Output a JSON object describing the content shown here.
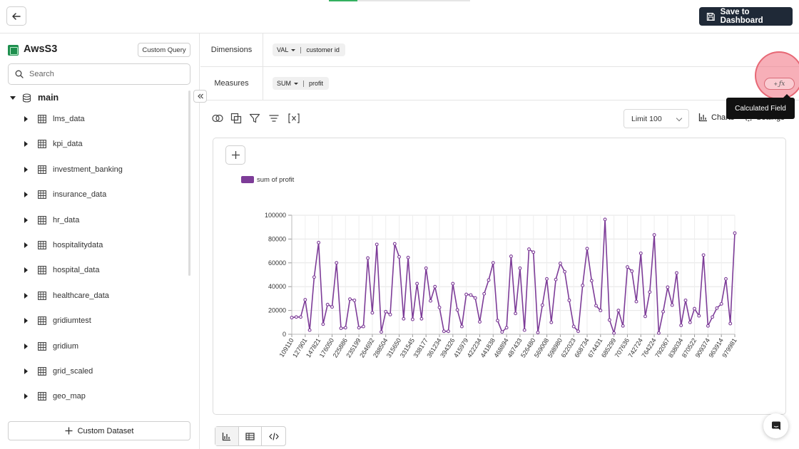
{
  "header": {
    "back_icon": "arrow-left-icon",
    "save_label": "Save to Dashboard",
    "save_icon": "floppy-disk-icon"
  },
  "sidebar": {
    "dataset_icon": "aws-s3-icon",
    "dataset_name": "AwsS3",
    "custom_query_label": "Custom Query",
    "search_placeholder": "Search",
    "schema": {
      "icon": "database-icon",
      "label": "main"
    },
    "tables": [
      {
        "label": "lms_data"
      },
      {
        "label": "kpi_data"
      },
      {
        "label": "investment_banking"
      },
      {
        "label": "insurance_data"
      },
      {
        "label": "hr_data"
      },
      {
        "label": "hospitalitydata"
      },
      {
        "label": "hospital_data"
      },
      {
        "label": "healthcare_data"
      },
      {
        "label": "gridiumtest"
      },
      {
        "label": "gridium"
      },
      {
        "label": "grid_scaled"
      },
      {
        "label": "geo_map"
      }
    ],
    "custom_dataset_label": "Custom Dataset"
  },
  "query": {
    "dimensions_label": "Dimensions",
    "dimension_chip": {
      "func": "VAL",
      "field": "customer id"
    },
    "measures_label": "Measures",
    "measure_chip": {
      "func": "SUM",
      "field": "profit"
    },
    "calculated_field_tooltip": "Calculated Field",
    "calculated_field_icon": "function-fx-icon"
  },
  "toolbar": {
    "icons": [
      "join-icon",
      "copy-icon",
      "filter-icon",
      "sort-icon",
      "variable-icon"
    ],
    "limit_label": "Limit",
    "limit_value": "100",
    "charts_label": "Charts",
    "settings_label": "Settings"
  },
  "chart_data": {
    "type": "line",
    "series": [
      {
        "name": "sum of profit",
        "color": "#7d3c98",
        "values": [
          14000,
          14500,
          14500,
          29000,
          3500,
          48000,
          77000,
          8500,
          25000,
          23000,
          60000,
          5000,
          5500,
          29500,
          28500,
          5500,
          6500,
          64000,
          18000,
          75500,
          2000,
          19000,
          16500,
          76000,
          65000,
          13000,
          64500,
          12500,
          42500,
          13000,
          55500,
          28000,
          40000,
          22500,
          2500,
          2500,
          42500,
          20500,
          6500,
          33500,
          33000,
          30500,
          10500,
          34000,
          45500,
          60000,
          11500,
          2000,
          5500,
          65500,
          17500,
          55500,
          3500,
          71500,
          69000,
          1500,
          24500,
          46500,
          10000,
          46000,
          59500,
          52500,
          28500,
          6500,
          2500,
          41000,
          72000,
          45000,
          24000,
          20000,
          96500,
          12000,
          1000,
          20000,
          7000,
          56500,
          53000,
          27500,
          68000,
          15000,
          35500,
          83500,
          1000,
          19000,
          39500,
          24500,
          51500,
          7500,
          28500,
          10000,
          21500,
          15500,
          66500,
          7000,
          14500,
          22000,
          25500,
          46500,
          9000,
          85000
        ]
      }
    ],
    "x_tick_labels": [
      "109110",
      "127901",
      "147821",
      "176050",
      "225886",
      "235199",
      "264692",
      "288504",
      "315650",
      "331545",
      "338177",
      "361234",
      "394326",
      "415979",
      "422234",
      "441838",
      "468894",
      "487433",
      "526480",
      "569008",
      "598980",
      "622023",
      "668734",
      "674431",
      "685299",
      "707636",
      "742724",
      "764224",
      "792067",
      "838034",
      "870522",
      "909374",
      "963914",
      "979981"
    ],
    "y_ticks": [
      "0",
      "20000",
      "40000",
      "60000",
      "80000",
      "100000"
    ],
    "ylim": [
      0,
      100000
    ],
    "grid": true,
    "legend": "top-left"
  },
  "view_icons": [
    "bar-chart-icon",
    "table-icon",
    "code-icon"
  ],
  "chat_icon": "chat-bubble-icon"
}
